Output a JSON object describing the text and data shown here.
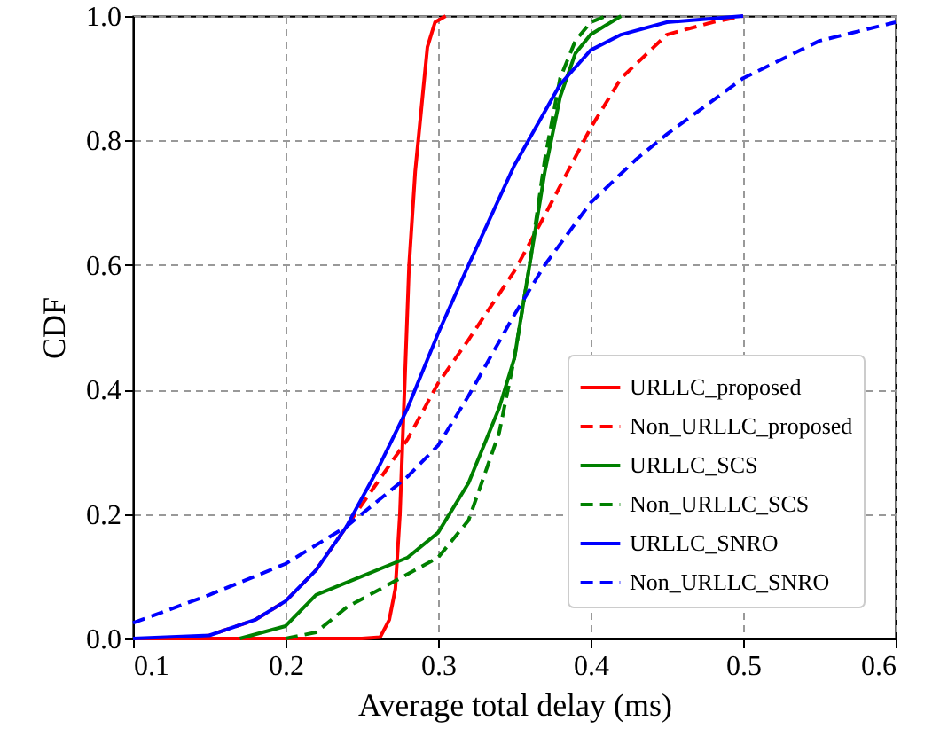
{
  "chart_data": {
    "type": "line",
    "xlabel": "Average total delay (ms)",
    "ylabel": "CDF",
    "xlim": [
      0.1,
      0.6
    ],
    "ylim": [
      0,
      1.0
    ],
    "xticks": [
      0.1,
      0.2,
      0.3,
      0.4,
      0.5,
      0.6
    ],
    "yticks": [
      {
        "value": 0,
        "label": "0.0"
      },
      0.2,
      0.4,
      0.6,
      0.8,
      {
        "value": 1,
        "label": "1.0"
      }
    ],
    "grid": true,
    "legend": "bottom right",
    "marker": "none",
    "series": [
      {
        "name": "URLLC_proposed",
        "color": "#ff0000",
        "line_style": "solid",
        "x": [
          0.1,
          0.25,
          0.262,
          0.268,
          0.272,
          0.275,
          0.278,
          0.281,
          0.285,
          0.289,
          0.293,
          0.298,
          0.305
        ],
        "values": [
          0,
          0,
          0.002,
          0.03,
          0.08,
          0.2,
          0.4,
          0.6,
          0.75,
          0.85,
          0.95,
          0.99,
          1.0
        ]
      },
      {
        "name": "Non_URLLC_proposed",
        "color": "#ff0000",
        "line_style": "dashed",
        "x": [
          0.13,
          0.15,
          0.18,
          0.2,
          0.22,
          0.24,
          0.26,
          0.28,
          0.3,
          0.32,
          0.35,
          0.37,
          0.4,
          0.42,
          0.45,
          0.48,
          0.5
        ],
        "values": [
          0,
          0.005,
          0.03,
          0.06,
          0.11,
          0.18,
          0.25,
          0.32,
          0.41,
          0.48,
          0.59,
          0.68,
          0.82,
          0.9,
          0.97,
          0.99,
          1.0
        ]
      },
      {
        "name": "URLLC_SCS",
        "color": "#008000",
        "line_style": "solid",
        "x": [
          0.17,
          0.2,
          0.22,
          0.25,
          0.28,
          0.3,
          0.32,
          0.34,
          0.35,
          0.36,
          0.37,
          0.38,
          0.39,
          0.4,
          0.42
        ],
        "values": [
          0,
          0.02,
          0.07,
          0.1,
          0.13,
          0.17,
          0.25,
          0.37,
          0.45,
          0.6,
          0.75,
          0.87,
          0.94,
          0.97,
          1.0
        ]
      },
      {
        "name": "Non_URLLC_SCS",
        "color": "#008000",
        "line_style": "dashed",
        "x": [
          0.2,
          0.22,
          0.24,
          0.27,
          0.3,
          0.32,
          0.34,
          0.35,
          0.36,
          0.37,
          0.38,
          0.39,
          0.4,
          0.41
        ],
        "values": [
          0,
          0.01,
          0.05,
          0.09,
          0.13,
          0.19,
          0.33,
          0.45,
          0.6,
          0.77,
          0.9,
          0.96,
          0.99,
          1.0
        ]
      },
      {
        "name": "URLLC_SNRO",
        "color": "#0000ff",
        "line_style": "solid",
        "x": [
          0.1,
          0.15,
          0.18,
          0.2,
          0.22,
          0.24,
          0.26,
          0.28,
          0.3,
          0.32,
          0.35,
          0.38,
          0.4,
          0.42,
          0.45,
          0.5
        ],
        "values": [
          0,
          0.005,
          0.03,
          0.06,
          0.11,
          0.18,
          0.27,
          0.37,
          0.49,
          0.6,
          0.76,
          0.89,
          0.945,
          0.97,
          0.99,
          1.0
        ]
      },
      {
        "name": "Non_URLLC_SNRO",
        "color": "#0000ff",
        "line_style": "dashed",
        "x": [
          0.1,
          0.15,
          0.2,
          0.24,
          0.28,
          0.3,
          0.32,
          0.35,
          0.37,
          0.4,
          0.43,
          0.45,
          0.5,
          0.55,
          0.6
        ],
        "values": [
          0.025,
          0.07,
          0.12,
          0.18,
          0.26,
          0.31,
          0.39,
          0.52,
          0.6,
          0.7,
          0.77,
          0.81,
          0.9,
          0.96,
          0.99
        ]
      }
    ]
  }
}
